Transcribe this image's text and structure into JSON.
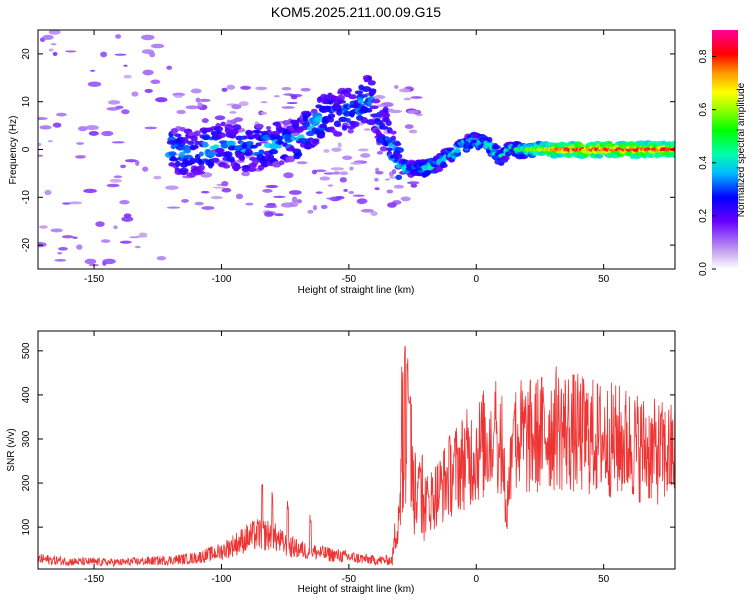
{
  "title": "KOM5.2025.211.00.09.G15",
  "chart_data": [
    {
      "type": "heatmap",
      "xlabel": "Height of straight line (km)",
      "ylabel": "Frequency (Hz)",
      "xlim": [
        -172,
        78
      ],
      "ylim": [
        -25,
        25
      ],
      "xticks": [
        -150,
        -100,
        -50,
        0,
        50
      ],
      "yticks": [
        -20,
        -10,
        0,
        10,
        20
      ],
      "colorbar": {
        "label": "Normalized spectral amplitude",
        "range": [
          0,
          0.9
        ],
        "ticks": [
          0.0,
          0.2,
          0.4,
          0.6,
          0.8
        ]
      },
      "ridge": {
        "description": "dominant frequency track (Hz) vs height (km)",
        "points": [
          [
            -120,
            0
          ],
          [
            -110,
            -1
          ],
          [
            -100,
            1
          ],
          [
            -90,
            0
          ],
          [
            -80,
            1
          ],
          [
            -70,
            2
          ],
          [
            -60,
            7
          ],
          [
            -50,
            8
          ],
          [
            -42,
            11
          ],
          [
            -38,
            5
          ],
          [
            -35,
            4
          ],
          [
            -33,
            0
          ],
          [
            -30,
            -3
          ],
          [
            -28,
            -4
          ],
          [
            -20,
            -4
          ],
          [
            -15,
            -3
          ],
          [
            -10,
            -1
          ],
          [
            -5,
            1
          ],
          [
            0,
            2
          ],
          [
            5,
            1
          ],
          [
            8,
            -1
          ],
          [
            10,
            -2
          ],
          [
            12,
            0
          ],
          [
            20,
            0
          ],
          [
            40,
            0
          ],
          [
            60,
            0
          ],
          [
            78,
            0
          ]
        ]
      },
      "grid": false
    },
    {
      "type": "line",
      "xlabel": "Height of straight line (km)",
      "ylabel": "SNR (v/v)",
      "xlim": [
        -172,
        78
      ],
      "ylim": [
        5,
        545
      ],
      "xticks": [
        -150,
        -100,
        -50,
        0,
        50
      ],
      "yticks": [
        100,
        200,
        300,
        400,
        500
      ],
      "color": "#ee3333",
      "envelope": [
        [
          -172,
          28
        ],
        [
          -160,
          22
        ],
        [
          -140,
          20
        ],
        [
          -120,
          25
        ],
        [
          -110,
          30
        ],
        [
          -100,
          45
        ],
        [
          -95,
          60
        ],
        [
          -90,
          75
        ],
        [
          -85,
          85
        ],
        [
          -80,
          80
        ],
        [
          -75,
          60
        ],
        [
          -70,
          50
        ],
        [
          -60,
          40
        ],
        [
          -50,
          32
        ],
        [
          -40,
          25
        ],
        [
          -33,
          25
        ],
        [
          -31,
          120
        ],
        [
          -28,
          250
        ],
        [
          -27,
          350
        ],
        [
          -26,
          320
        ],
        [
          -25,
          200
        ],
        [
          -22,
          140
        ],
        [
          -20,
          150
        ],
        [
          -15,
          180
        ],
        [
          -10,
          220
        ],
        [
          -5,
          250
        ],
        [
          0,
          270
        ],
        [
          5,
          300
        ],
        [
          8,
          320
        ],
        [
          10,
          280
        ],
        [
          12,
          160
        ],
        [
          14,
          260
        ],
        [
          16,
          310
        ],
        [
          20,
          300
        ],
        [
          25,
          310
        ],
        [
          30,
          325
        ],
        [
          35,
          320
        ],
        [
          40,
          310
        ],
        [
          50,
          300
        ],
        [
          60,
          290
        ],
        [
          70,
          270
        ],
        [
          78,
          265
        ]
      ],
      "spikes": [
        [
          -84,
          200
        ],
        [
          -80,
          180
        ],
        [
          -74,
          160
        ],
        [
          -65,
          130
        ],
        [
          -29,
          470
        ],
        [
          -28,
          540
        ],
        [
          -27,
          530
        ],
        [
          -26.5,
          440
        ],
        [
          -26,
          420
        ],
        [
          -24,
          300
        ],
        [
          -22,
          260
        ],
        [
          -21,
          290
        ],
        [
          7,
          360
        ],
        [
          8,
          350
        ],
        [
          9,
          300
        ],
        [
          11,
          200
        ],
        [
          12,
          110
        ],
        [
          14,
          330
        ],
        [
          15,
          400
        ],
        [
          32,
          345
        ]
      ],
      "grid": false
    }
  ]
}
